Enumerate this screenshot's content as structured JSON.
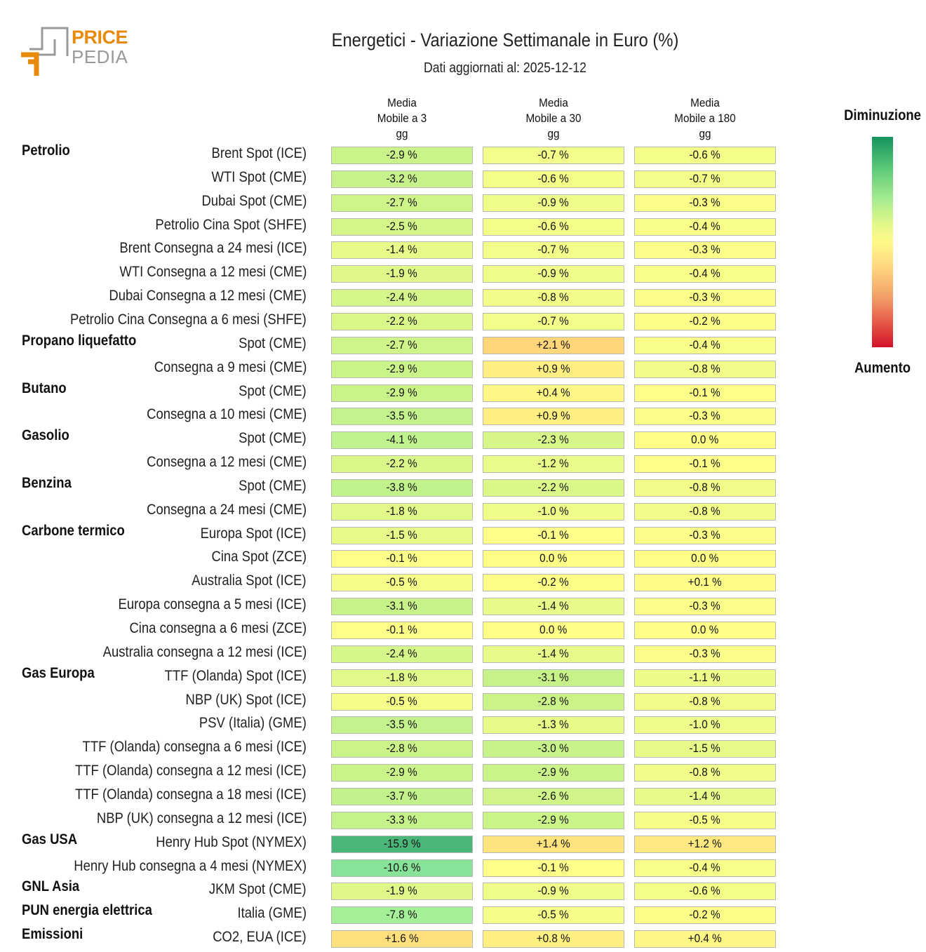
{
  "logo": {
    "line1": "PRICE",
    "line2": "PEDIA",
    "colors": {
      "orange": "#e88a0c",
      "gray": "#9a9a9a"
    }
  },
  "header": {
    "title": "Energetici - Variazione Settimanale in Euro (%)",
    "subtitle": "Dati aggiornati al: 2025-12-12"
  },
  "legend": {
    "top_label": "Diminuzione",
    "bottom_label": "Aumento",
    "top_color": "#14935f",
    "mid_color": "#fff988",
    "bottom_color": "#d2122a"
  },
  "chart_data": {
    "type": "heatmap",
    "title": "Energetici - Variazione Settimanale in Euro (%)",
    "columns": [
      "Media\nMobile a 3\ngg",
      "Media\nMobile a 30\ngg",
      "Media\nMobile a 180\ngg"
    ],
    "unit": "%",
    "rows": [
      {
        "group": "Petrolio",
        "label": "Brent Spot (ICE)",
        "values": [
          "-2.9",
          "-0.7",
          "-0.6"
        ]
      },
      {
        "group": "",
        "label": "WTI Spot (CME)",
        "values": [
          "-3.2",
          "-0.6",
          "-0.7"
        ]
      },
      {
        "group": "",
        "label": "Dubai Spot (CME)",
        "values": [
          "-2.7",
          "-0.9",
          "-0.3"
        ]
      },
      {
        "group": "",
        "label": "Petrolio Cina Spot (SHFE)",
        "values": [
          "-2.5",
          "-0.6",
          "-0.4"
        ]
      },
      {
        "group": "",
        "label": "Brent Consegna a 24 mesi (ICE)",
        "values": [
          "-1.4",
          "-0.7",
          "-0.3"
        ]
      },
      {
        "group": "",
        "label": "WTI Consegna a 12 mesi (CME)",
        "values": [
          "-1.9",
          "-0.9",
          "-0.4"
        ]
      },
      {
        "group": "",
        "label": "Dubai Consegna a 12 mesi (CME)",
        "values": [
          "-2.4",
          "-0.8",
          "-0.3"
        ]
      },
      {
        "group": "",
        "label": "Petrolio Cina Consegna a 6 mesi (SHFE)",
        "values": [
          "-2.2",
          "-0.7",
          "-0.2"
        ]
      },
      {
        "group": "Propano liquefatto",
        "label": "Spot (CME)",
        "values": [
          "-2.7",
          "+2.1",
          "-0.4"
        ]
      },
      {
        "group": "",
        "label": "Consegna a 9 mesi (CME)",
        "values": [
          "-2.9",
          "+0.9",
          "-0.8"
        ]
      },
      {
        "group": "Butano",
        "label": "Spot (CME)",
        "values": [
          "-2.9",
          "+0.4",
          "-0.1"
        ]
      },
      {
        "group": "",
        "label": "Consegna a 10 mesi (CME)",
        "values": [
          "-3.5",
          "+0.9",
          "-0.3"
        ]
      },
      {
        "group": "Gasolio",
        "label": "Spot (CME)",
        "values": [
          "-4.1",
          "-2.3",
          "0.0"
        ]
      },
      {
        "group": "",
        "label": "Consegna a 12 mesi (CME)",
        "values": [
          "-2.2",
          "-1.2",
          "-0.1"
        ]
      },
      {
        "group": "Benzina",
        "label": "Spot (CME)",
        "values": [
          "-3.8",
          "-2.2",
          "-0.8"
        ]
      },
      {
        "group": "",
        "label": "Consegna a 24 mesi (CME)",
        "values": [
          "-1.8",
          "-1.0",
          "-0.8"
        ]
      },
      {
        "group": "Carbone termico",
        "label": "Europa Spot (ICE)",
        "values": [
          "-1.5",
          "-0.1",
          "-0.3"
        ]
      },
      {
        "group": "",
        "label": "Cina Spot (ZCE)",
        "values": [
          "-0.1",
          "0.0",
          "0.0"
        ]
      },
      {
        "group": "",
        "label": "Australia Spot (ICE)",
        "values": [
          "-0.5",
          "-0.2",
          "+0.1"
        ]
      },
      {
        "group": "",
        "label": "Europa consegna a 5 mesi (ICE)",
        "values": [
          "-3.1",
          "-1.4",
          "-0.3"
        ]
      },
      {
        "group": "",
        "label": "Cina consegna a 6 mesi (ZCE)",
        "values": [
          "-0.1",
          "0.0",
          "0.0"
        ]
      },
      {
        "group": "",
        "label": "Australia consegna a 12 mesi (ICE)",
        "values": [
          "-2.4",
          "-1.4",
          "-0.3"
        ]
      },
      {
        "group": "Gas Europa",
        "label": "TTF (Olanda) Spot (ICE)",
        "values": [
          "-1.8",
          "-3.1",
          "-1.1"
        ]
      },
      {
        "group": "",
        "label": "NBP (UK) Spot (ICE)",
        "values": [
          "-0.5",
          "-2.8",
          "-0.8"
        ]
      },
      {
        "group": "",
        "label": "PSV (Italia) (GME)",
        "values": [
          "-3.5",
          "-1.3",
          "-1.0"
        ]
      },
      {
        "group": "",
        "label": "TTF (Olanda) consegna a 6 mesi (ICE)",
        "values": [
          "-2.8",
          "-3.0",
          "-1.5"
        ]
      },
      {
        "group": "",
        "label": "TTF (Olanda) consegna a 12 mesi (ICE)",
        "values": [
          "-2.9",
          "-2.9",
          "-0.8"
        ]
      },
      {
        "group": "",
        "label": "TTF (Olanda) consegna a 18 mesi (ICE)",
        "values": [
          "-3.7",
          "-2.6",
          "-1.4"
        ]
      },
      {
        "group": "",
        "label": "NBP (UK) consegna a 12 mesi (ICE)",
        "values": [
          "-3.3",
          "-2.9",
          "-0.5"
        ]
      },
      {
        "group": "Gas USA",
        "label": "Henry Hub Spot (NYMEX)",
        "values": [
          "-15.9",
          "+1.4",
          "+1.2"
        ]
      },
      {
        "group": "",
        "label": "Henry Hub consegna a 4 mesi (NYMEX)",
        "values": [
          "-10.6",
          "-0.1",
          "-0.4"
        ]
      },
      {
        "group": "GNL Asia",
        "label": "JKM Spot (CME)",
        "values": [
          "-1.9",
          "-0.9",
          "-0.6"
        ]
      },
      {
        "group": "PUN energia elettrica",
        "label": "Italia (GME)",
        "values": [
          "-7.8",
          "-0.5",
          "-0.2"
        ]
      },
      {
        "group": "Emissioni",
        "label": "CO2, EUA (ICE)",
        "values": [
          "+1.6",
          "+0.8",
          "+0.4"
        ]
      }
    ]
  }
}
